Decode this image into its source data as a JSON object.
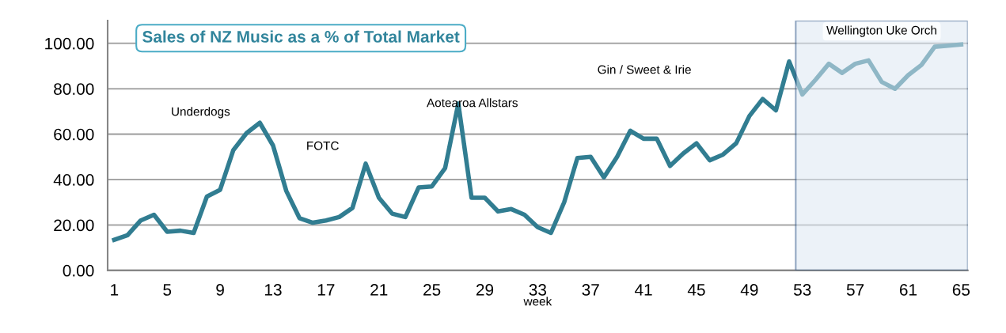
{
  "chart_data": {
    "type": "line",
    "title": "Sales of NZ Music as a % of Total Market",
    "xlabel": "week",
    "x": [
      1,
      2,
      3,
      4,
      5,
      6,
      7,
      8,
      9,
      10,
      11,
      12,
      13,
      14,
      15,
      16,
      17,
      18,
      19,
      20,
      21,
      22,
      23,
      24,
      25,
      26,
      27,
      28,
      29,
      30,
      31,
      32,
      33,
      34,
      35,
      36,
      37,
      38,
      39,
      40,
      41,
      42,
      43,
      44,
      45,
      46,
      47,
      48,
      49,
      50,
      51,
      52,
      53,
      54,
      55,
      56,
      57,
      58,
      59,
      60,
      61,
      62,
      63,
      64,
      65
    ],
    "series": [
      {
        "color": "#317d91",
        "values": [
          13.5,
          15.5,
          22,
          24.5,
          17,
          17.5,
          16.5,
          32.5,
          35.5,
          53,
          60.5,
          65,
          55,
          35,
          23,
          21,
          22,
          23.5,
          27.5,
          47,
          32,
          25,
          23.5,
          36.5,
          37,
          45,
          73.5,
          32,
          32,
          26,
          27,
          24.5,
          19,
          16.5,
          30,
          49.5,
          50,
          41,
          50,
          61.5,
          58,
          58,
          46,
          51.5,
          56,
          48.5,
          51,
          56,
          68,
          75.5,
          70.5,
          92,
          77.5,
          84,
          91,
          87,
          91,
          92.5,
          83,
          80,
          86,
          90.5,
          98.5,
          99,
          99.5
        ]
      }
    ],
    "xlim": [
      0.5,
      65.5
    ],
    "xticks": [
      1,
      5,
      9,
      13,
      17,
      21,
      25,
      29,
      33,
      37,
      41,
      45,
      49,
      53,
      57,
      61,
      65
    ],
    "ylim": [
      0,
      110
    ],
    "yticks": [
      {
        "value": 0,
        "label": "0.00"
      },
      {
        "value": 20,
        "label": "20.00"
      },
      {
        "value": 40,
        "label": "40.00"
      },
      {
        "value": 60,
        "label": "60.00"
      },
      {
        "value": 80,
        "label": "80.00"
      },
      {
        "value": 100,
        "label": "100.00"
      }
    ],
    "grid": "y",
    "legend": false,
    "marker": "none",
    "line_style": "solid",
    "bands": [
      {
        "axis": "x",
        "from": 52.5,
        "to": 65.5,
        "label": "Wellington Uke Orch",
        "color": "#dce7f3"
      }
    ],
    "annotations": [
      "Underdogs",
      "FOTC",
      "Aotearoa Allstars",
      "Gin / Sweet & Irie"
    ]
  }
}
